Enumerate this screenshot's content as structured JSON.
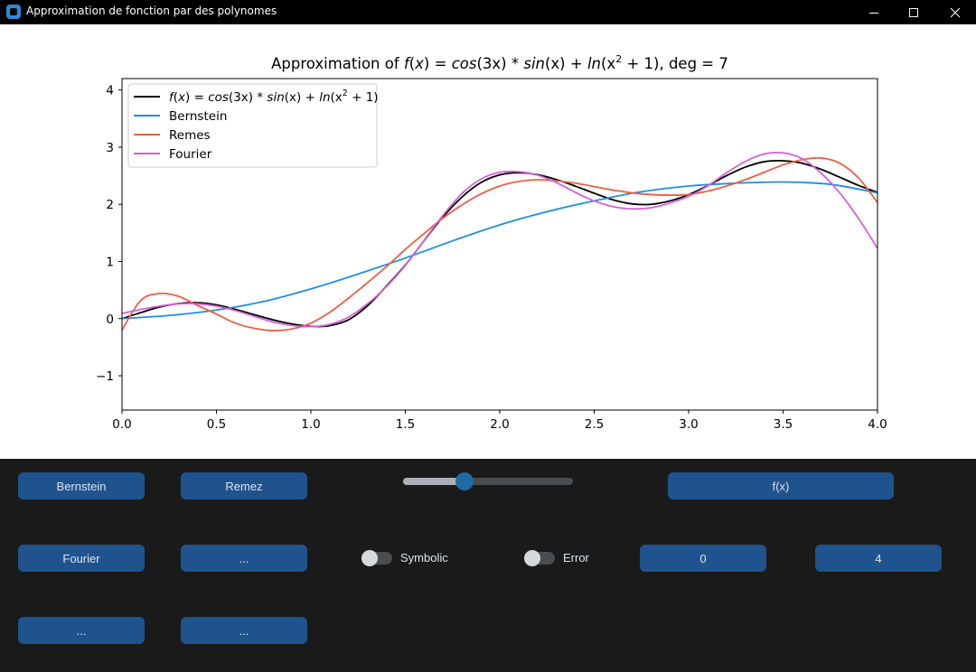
{
  "window": {
    "title": "Approximation de fonction par des polynomes",
    "controls": [
      "minimize-icon",
      "maximize-icon",
      "close-icon"
    ]
  },
  "chart_data": {
    "type": "line",
    "title": "Approximation of f(x) = cos(3x) * sin(x) + ln(x² + 1), deg = 7",
    "title_parts": {
      "prefix": "Approximation of ",
      "f": "f",
      "x": "x",
      "eq": " = ",
      "cos": "cos",
      "cos_arg": "(3x)",
      "mul": " * ",
      "sin": "sin",
      "sin_arg": "(x)",
      "plus": " + ",
      "ln": "ln",
      "ln_open": "(x",
      "exp": "2",
      "ln_close": " + 1)",
      "suffix": ", deg = 7"
    },
    "xlim": [
      0,
      4
    ],
    "ylim": [
      -1.6,
      4.2
    ],
    "xticks": [
      0.0,
      0.5,
      1.0,
      1.5,
      2.0,
      2.5,
      3.0,
      3.5,
      4.0
    ],
    "xtick_labels": [
      "0.0",
      "0.5",
      "1.0",
      "1.5",
      "2.0",
      "2.5",
      "3.0",
      "3.5",
      "4.0"
    ],
    "yticks": [
      -1,
      0,
      1,
      2,
      3,
      4
    ],
    "ytick_labels": [
      "−1",
      "0",
      "1",
      "2",
      "3",
      "4"
    ],
    "legend_position": "top-left",
    "series": [
      {
        "name": "f(x) = cos(3x) * sin(x) + ln(x² + 1)",
        "color": "#000000",
        "x": [
          0.0,
          0.1,
          0.2,
          0.3,
          0.4,
          0.5,
          0.6,
          0.7,
          0.8,
          0.9,
          1.0,
          1.1,
          1.2,
          1.3,
          1.4,
          1.5,
          1.6,
          1.7,
          1.8,
          1.9,
          2.0,
          2.1,
          2.2,
          2.3,
          2.4,
          2.5,
          2.6,
          2.7,
          2.8,
          2.9,
          3.0,
          3.1,
          3.2,
          3.3,
          3.4,
          3.5,
          3.6,
          3.7,
          3.8,
          3.9,
          4.0
        ],
        "y": [
          0.0,
          0.106,
          0.203,
          0.265,
          0.278,
          0.241,
          0.163,
          0.07,
          -0.021,
          -0.093,
          -0.136,
          -0.123,
          -0.018,
          0.226,
          0.569,
          0.937,
          1.367,
          1.781,
          2.127,
          2.38,
          2.515,
          2.552,
          2.518,
          2.433,
          2.318,
          2.194,
          2.079,
          2.008,
          2.0,
          2.058,
          2.17,
          2.325,
          2.5,
          2.65,
          2.745,
          2.762,
          2.72,
          2.614,
          2.474,
          2.33,
          2.209
        ]
      },
      {
        "name": "Bernstein",
        "color": "#1f8ee6",
        "x": [
          0.0,
          0.25,
          0.5,
          0.75,
          1.0,
          1.25,
          1.5,
          1.75,
          2.0,
          2.25,
          2.5,
          2.75,
          3.0,
          3.25,
          3.5,
          3.75,
          4.0
        ],
        "y": [
          0.0,
          0.055,
          0.15,
          0.3,
          0.52,
          0.78,
          1.06,
          1.36,
          1.64,
          1.87,
          2.06,
          2.22,
          2.32,
          2.37,
          2.39,
          2.35,
          2.2
        ]
      },
      {
        "name": "Remes",
        "color": "#ef5f41",
        "x": [
          0.0,
          0.1,
          0.2,
          0.3,
          0.4,
          0.5,
          0.6,
          0.7,
          0.8,
          0.9,
          1.0,
          1.1,
          1.2,
          1.3,
          1.4,
          1.5,
          1.6,
          1.7,
          1.8,
          1.9,
          2.0,
          2.1,
          2.2,
          2.3,
          2.4,
          2.5,
          2.6,
          2.7,
          2.8,
          2.9,
          3.0,
          3.1,
          3.2,
          3.3,
          3.4,
          3.5,
          3.6,
          3.7,
          3.8,
          3.9,
          4.0
        ],
        "y": [
          -0.2,
          0.32,
          0.44,
          0.39,
          0.23,
          0.08,
          -0.08,
          -0.17,
          -0.21,
          -0.18,
          -0.08,
          0.11,
          0.36,
          0.63,
          0.91,
          1.21,
          1.49,
          1.76,
          1.99,
          2.18,
          2.32,
          2.4,
          2.43,
          2.41,
          2.37,
          2.31,
          2.25,
          2.2,
          2.17,
          2.16,
          2.17,
          2.23,
          2.32,
          2.43,
          2.56,
          2.69,
          2.78,
          2.81,
          2.72,
          2.46,
          2.03
        ]
      },
      {
        "name": "Fourier",
        "color": "#d65fd6",
        "x": [
          0.0,
          0.1,
          0.2,
          0.3,
          0.4,
          0.5,
          0.6,
          0.7,
          0.8,
          0.9,
          1.0,
          1.1,
          1.2,
          1.3,
          1.4,
          1.5,
          1.6,
          1.7,
          1.8,
          1.9,
          2.0,
          2.1,
          2.2,
          2.3,
          2.4,
          2.5,
          2.6,
          2.7,
          2.8,
          2.9,
          3.0,
          3.1,
          3.2,
          3.3,
          3.4,
          3.5,
          3.6,
          3.7,
          3.8,
          3.9,
          4.0
        ],
        "y": [
          0.09,
          0.16,
          0.22,
          0.26,
          0.26,
          0.22,
          0.14,
          0.04,
          -0.06,
          -0.12,
          -0.14,
          -0.1,
          0.03,
          0.26,
          0.56,
          0.93,
          1.37,
          1.81,
          2.19,
          2.44,
          2.56,
          2.57,
          2.51,
          2.38,
          2.21,
          2.06,
          1.96,
          1.92,
          1.94,
          2.02,
          2.14,
          2.32,
          2.55,
          2.75,
          2.88,
          2.9,
          2.8,
          2.55,
          2.2,
          1.75,
          1.23
        ]
      }
    ],
    "legend": [
      {
        "label": "f(x) = cos(3x) * sin(x) + ln(x² + 1)",
        "color": "#000000"
      },
      {
        "label": "Bernstein",
        "color": "#1f8ee6"
      },
      {
        "label": "Remes",
        "color": "#ef5f41"
      },
      {
        "label": "Fourier",
        "color": "#d65fd6"
      }
    ]
  },
  "controls": {
    "bernstein_button": "Bernstein",
    "remez_button": "Remez",
    "fx_button": "f(x)",
    "fourier_button": "Fourier",
    "placeholder_button_1": "...",
    "placeholder_button_2": "...",
    "placeholder_button_3": "...",
    "symbolic_switch": {
      "label": "Symbolic",
      "on": false
    },
    "error_switch": {
      "label": "Error",
      "on": false
    },
    "range_min": "0",
    "range_max": "4",
    "degree_slider": {
      "value_fraction": 0.36
    },
    "accent_color": "#1f538d"
  }
}
